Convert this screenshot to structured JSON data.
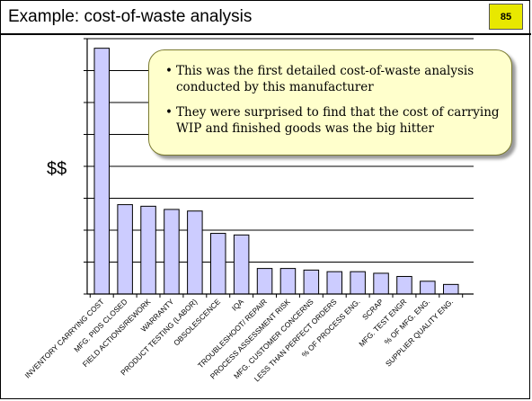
{
  "slide": {
    "title": "Example:  cost-of-waste analysis",
    "page_number": "85"
  },
  "callout": {
    "bullets": [
      "This was the first detailed cost-of-waste analysis conducted by this manufacturer",
      "They were surprised to find that the cost of carrying WIP and finished goods was the big hitter"
    ]
  },
  "chart_data": {
    "type": "bar",
    "ylabel": "$$",
    "ylim": [
      0,
      8
    ],
    "grid": true,
    "bar_color": "#ccccff",
    "categories": [
      "INVENTORY CARRYING COST",
      "MFG. PIDS CLOSED",
      "FIELD ACTIONS/REWORK",
      "WARRANTY",
      "PRODUCT TESTING (LABOR)",
      "OBSOLESCENCE",
      "IQA",
      "TROUBLESHOOT/ REPAIR",
      "PROCESS ASSESSMENT RISK",
      "MFG. CUSTOMER CONCERNS",
      "LESS THAN PERFECT ORDERS",
      "% OF PROCESS ENG.",
      "SCRAP",
      "MFG. TEST ENGR",
      "% OF MFG. ENG.",
      "SUPPLIER QUALITY ENG."
    ],
    "values": [
      7.7,
      2.8,
      2.75,
      2.65,
      2.6,
      1.9,
      1.85,
      0.8,
      0.8,
      0.75,
      0.7,
      0.7,
      0.65,
      0.55,
      0.4,
      0.3
    ]
  }
}
